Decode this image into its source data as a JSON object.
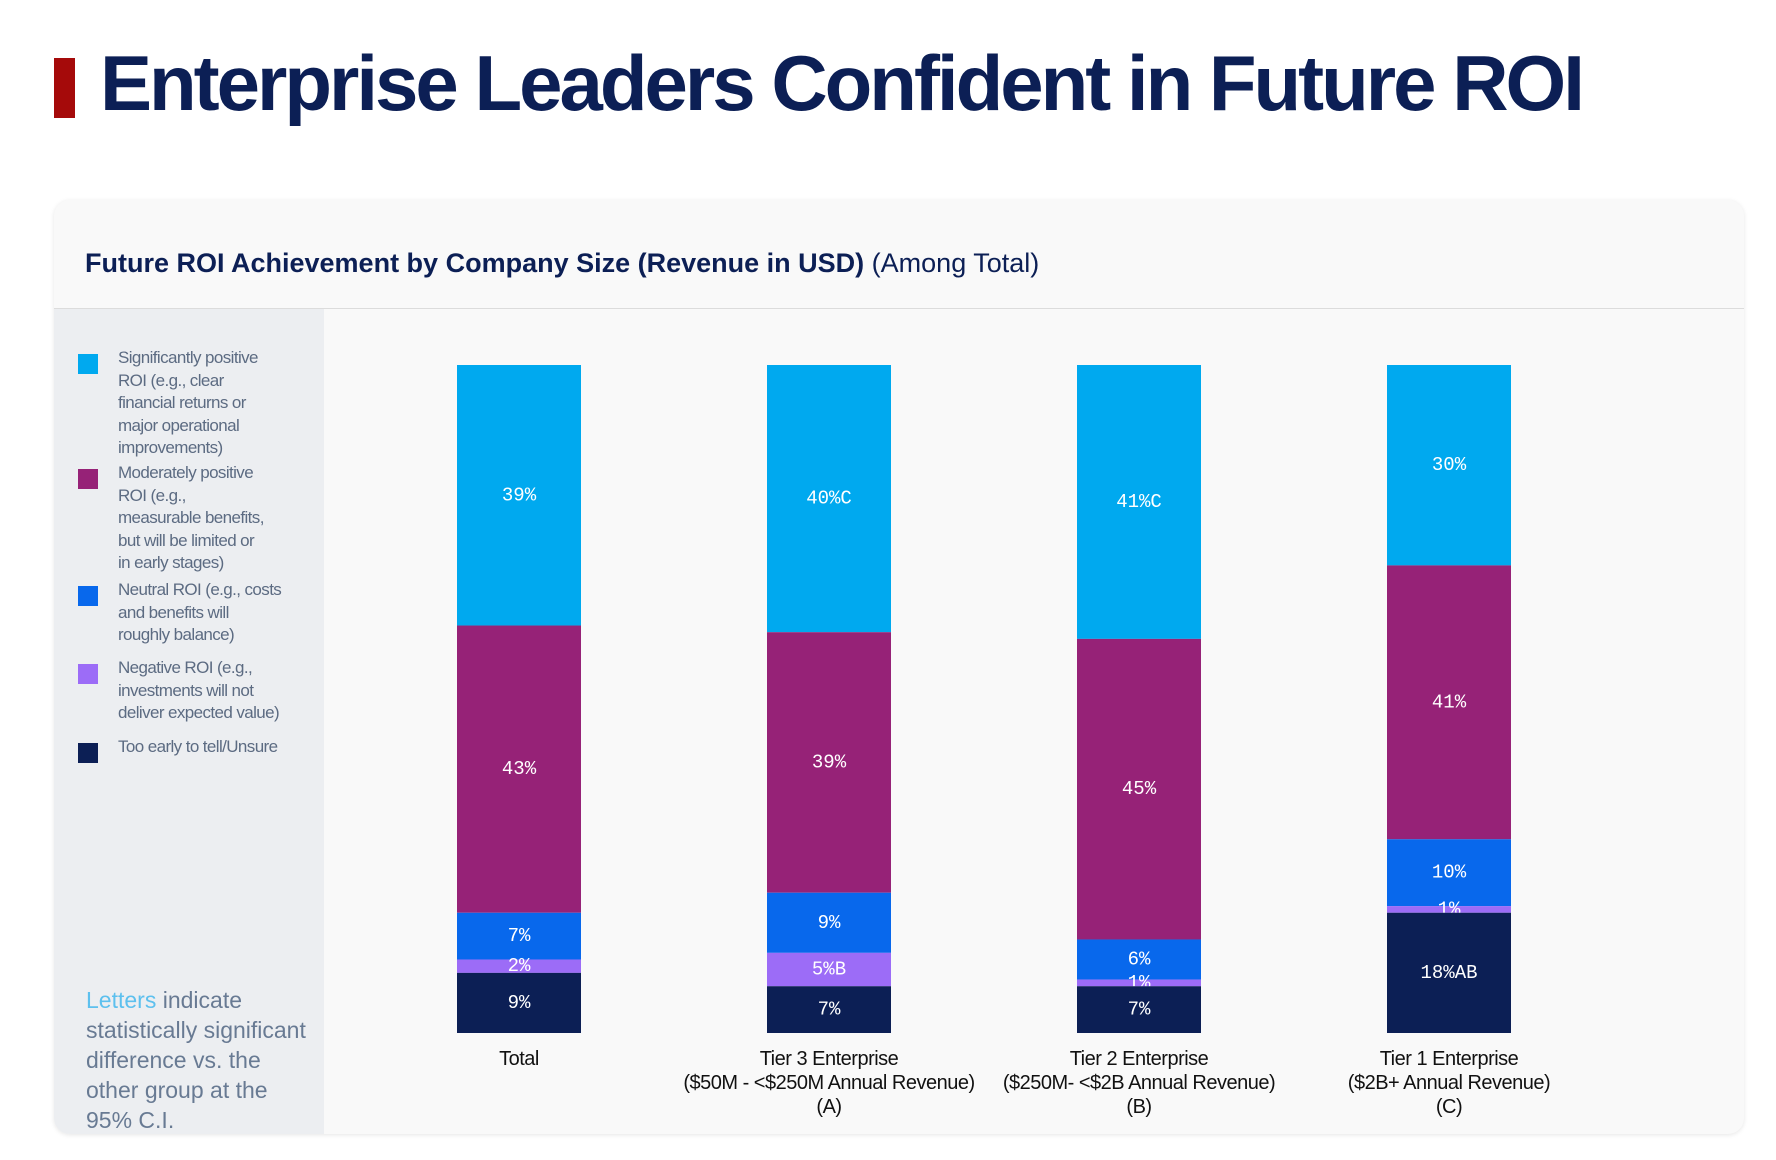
{
  "page": {
    "title": "Enterprise Leaders Confident in Future ROI"
  },
  "chart_data": {
    "type": "bar",
    "stacked": true,
    "title_bold": "Future ROI Achievement by Company Size (Revenue in USD)",
    "title_suffix": "(Among Total)",
    "categories": [
      [
        "Total"
      ],
      [
        "Tier 3 Enterprise",
        "($50M - <$250M Annual Revenue)",
        "(A)"
      ],
      [
        "Tier 2 Enterprise",
        "($250M- <$2B Annual Revenue)",
        "(B)"
      ],
      [
        "Tier 1 Enterprise",
        "($2B+ Annual Revenue)",
        "(C)"
      ]
    ],
    "series": [
      {
        "name": "Significantly positive ROI (e.g., clear financial returns or major operational improvements)",
        "legend_lines": [
          "Significantly positive",
          "ROI (e.g., clear",
          "financial returns or",
          "major operational",
          "improvements)"
        ],
        "color": "#00a9ef",
        "values": [
          39,
          40,
          41,
          30
        ],
        "labels": [
          "39%",
          "40%C",
          "41%C",
          "30%"
        ]
      },
      {
        "name": "Moderately positive ROI (e.g., measurable benefits, but will be limited or in early stages)",
        "legend_lines": [
          "Moderately positive",
          "ROI (e.g.,",
          "measurable benefits,",
          "but will be limited or",
          "in early stages)"
        ],
        "color": "#962277",
        "values": [
          43,
          39,
          45,
          41
        ],
        "labels": [
          "43%",
          "39%",
          "45%",
          "41%"
        ]
      },
      {
        "name": "Neutral ROI (e.g., costs and benefits will roughly balance)",
        "legend_lines": [
          "Neutral ROI (e.g., costs",
          "and benefits will",
          "roughly balance)"
        ],
        "color": "#0868ec",
        "values": [
          7,
          9,
          6,
          10
        ],
        "labels": [
          "7%",
          "9%",
          "6%",
          "10%"
        ]
      },
      {
        "name": "Negative ROI (e.g., investments will not deliver expected value)",
        "legend_lines": [
          "Negative ROI (e.g.,",
          "investments will not",
          "deliver expected value)"
        ],
        "color": "#9c6cf7",
        "values": [
          2,
          5,
          1,
          1
        ],
        "labels": [
          "2%",
          "5%B",
          "1%",
          "1%"
        ]
      },
      {
        "name": "Too early to tell/Unsure",
        "legend_lines": [
          "Too early to tell/Unsure"
        ],
        "color": "#0c1f55",
        "values": [
          9,
          7,
          7,
          18
        ],
        "labels": [
          "9%",
          "7%",
          "7%",
          "18%AB"
        ]
      }
    ],
    "ylim": [
      0,
      100
    ],
    "legend_position": "left"
  },
  "note": {
    "highlight": "Letters",
    "rest": " indicate statistically significant difference vs. the other group at the 95% C.I."
  }
}
